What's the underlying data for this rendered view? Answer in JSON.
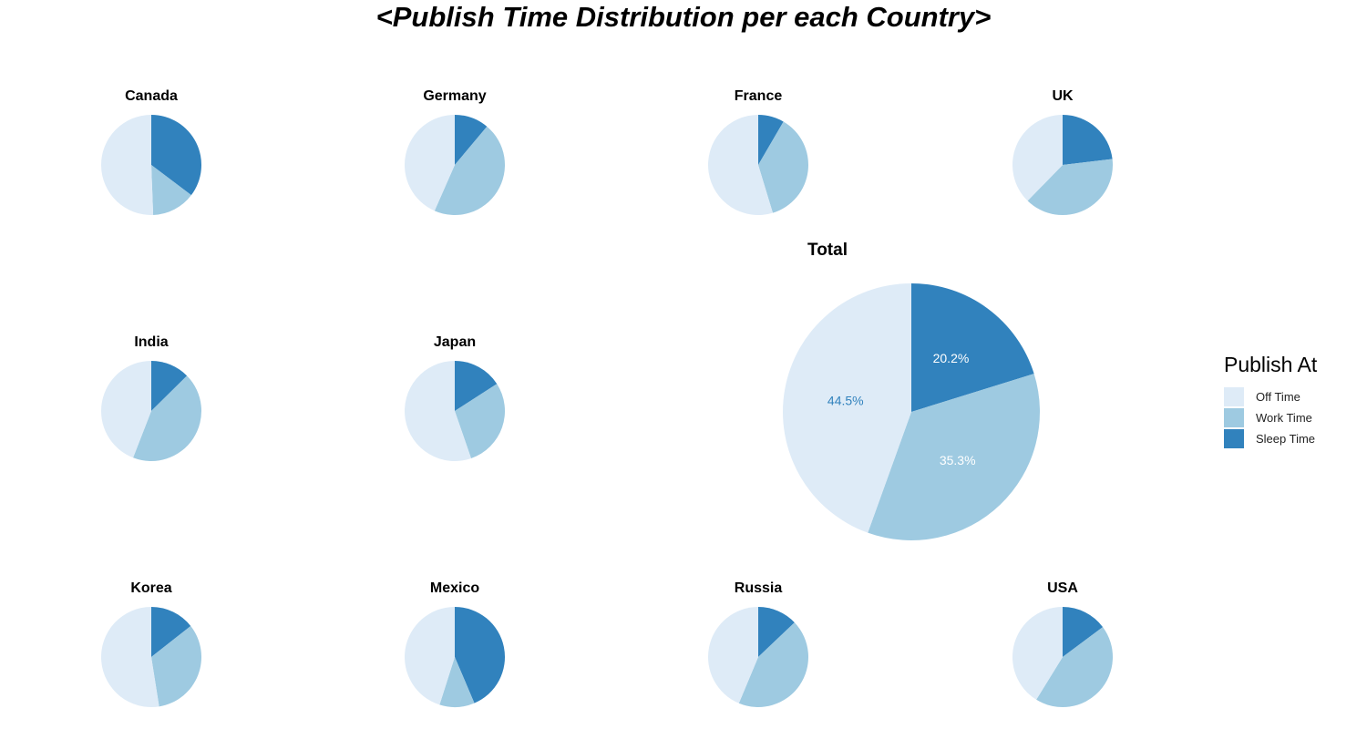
{
  "title": "<Publish Time Distribution per each Country>",
  "legend": {
    "title": "Publish At",
    "items": [
      {
        "label": "Off Time",
        "color": "#deebf7"
      },
      {
        "label": "Work Time",
        "color": "#9ecae1"
      },
      {
        "label": "Sleep Time",
        "color": "#3182bd"
      }
    ]
  },
  "chart_data": {
    "type": "pie",
    "categories": [
      "Sleep Time",
      "Work Time",
      "Off Time"
    ],
    "colors": {
      "Sleep Time": "#3182bd",
      "Work Time": "#9ecae1",
      "Off Time": "#deebf7"
    },
    "countries": [
      {
        "name": "Canada",
        "values": {
          "Sleep Time": 35.3,
          "Work Time": 14.1,
          "Off Time": 50.6
        }
      },
      {
        "name": "Germany",
        "values": {
          "Sleep Time": 11.1,
          "Work Time": 45.5,
          "Off Time": 43.4
        }
      },
      {
        "name": "France",
        "values": {
          "Sleep Time": 8.4,
          "Work Time": 36.9,
          "Off Time": 54.7
        }
      },
      {
        "name": "UK",
        "values": {
          "Sleep Time": 23.1,
          "Work Time": 39.2,
          "Off Time": 37.7
        }
      },
      {
        "name": "India",
        "values": {
          "Sleep Time": 12.6,
          "Work Time": 43.3,
          "Off Time": 44.1
        }
      },
      {
        "name": "Japan",
        "values": {
          "Sleep Time": 15.9,
          "Work Time": 28.8,
          "Off Time": 55.3
        }
      },
      {
        "name": "Korea",
        "values": {
          "Sleep Time": 14.4,
          "Work Time": 33.1,
          "Off Time": 52.5
        }
      },
      {
        "name": "Mexico",
        "values": {
          "Sleep Time": 43.6,
          "Work Time": 11.3,
          "Off Time": 45.1
        }
      },
      {
        "name": "Russia",
        "values": {
          "Sleep Time": 12.9,
          "Work Time": 43.4,
          "Off Time": 43.7
        }
      },
      {
        "name": "USA",
        "values": {
          "Sleep Time": 14.8,
          "Work Time": 44.0,
          "Off Time": 41.2
        }
      }
    ],
    "total": {
      "name": "Total",
      "values": {
        "Sleep Time": 20.2,
        "Work Time": 35.3,
        "Off Time": 44.5
      },
      "labels": {
        "Sleep Time": "20.2%",
        "Work Time": "35.3%",
        "Off Time": "44.5%"
      },
      "label_colors": {
        "Sleep Time": "#ffffff",
        "Work Time": "#ffffff",
        "Off Time": "#3182bd"
      }
    }
  }
}
